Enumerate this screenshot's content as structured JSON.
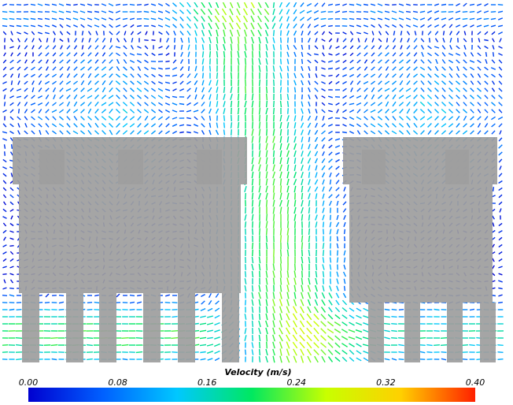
{
  "chart_data": {
    "type": "heatmap",
    "subtype": "velocity-vector-field",
    "colorbar": {
      "title": "Velocity (m/s)",
      "min": 0.0,
      "max": 0.4,
      "ticks": [
        "0.00",
        "0.08",
        "0.16",
        "0.24",
        "0.32",
        "0.40"
      ],
      "colormap": "blue-cyan-green-yellow-red",
      "colors": [
        "#0000d0",
        "#0060ff",
        "#00c8ff",
        "#00e860",
        "#c8ff00",
        "#ffd000",
        "#ff2000"
      ]
    },
    "flow_regions": [
      {
        "region": "central upward plume",
        "velocity_range": [
          0.16,
          0.26
        ]
      },
      {
        "region": "left upper recirculation",
        "velocity_range": [
          0.04,
          0.12
        ]
      },
      {
        "region": "right upper recirculation",
        "velocity_range": [
          0.04,
          0.12
        ]
      },
      {
        "region": "floor-level flow under left obstacles",
        "velocity_range": [
          0.18,
          0.26
        ]
      },
      {
        "region": "obstacle interiors",
        "velocity_range": [
          0.0,
          0.0
        ]
      }
    ],
    "obstacle_color": "#9e9e9e",
    "background_color": "#ffffff"
  }
}
